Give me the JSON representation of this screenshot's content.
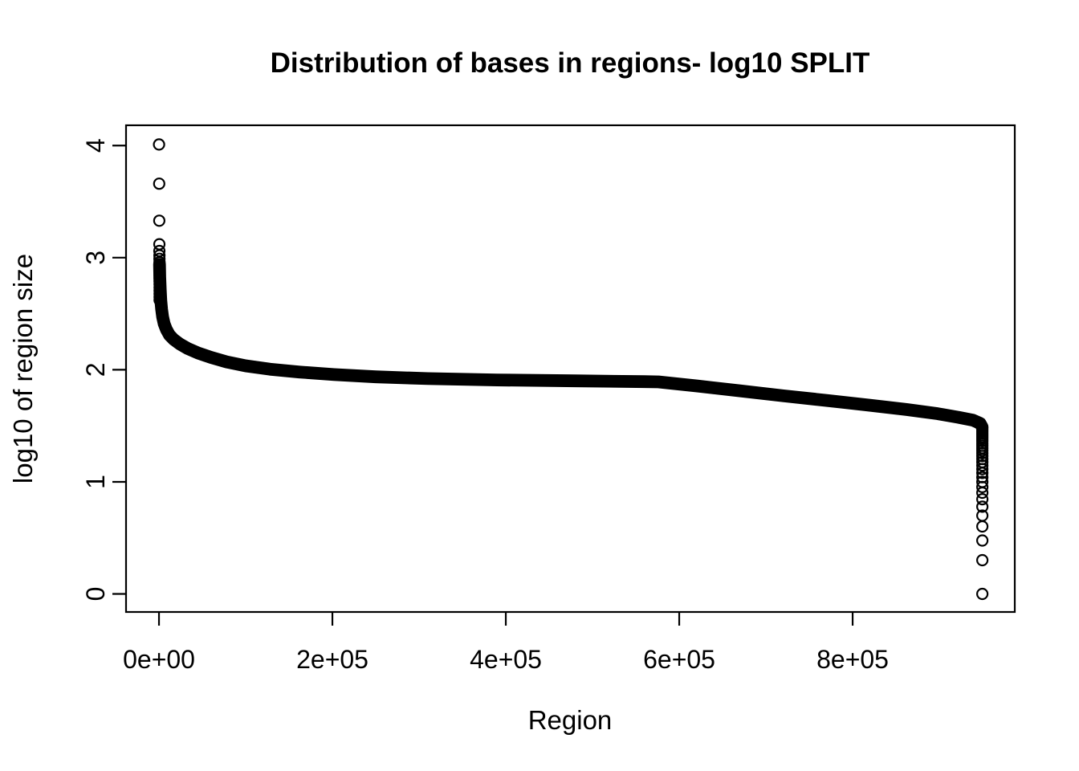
{
  "window": {
    "background_color": "#ffffff",
    "foreground_color": "#000000"
  },
  "chart_data": {
    "type": "scatter",
    "title": "Distribution of bases in regions- log10 SPLIT",
    "xlabel": "Region",
    "ylabel": "log10 of region size",
    "grid": false,
    "legend": "none",
    "xlim": [
      -38000,
      987000
    ],
    "ylim": [
      -0.161,
      4.181
    ],
    "x_ticks": {
      "values": [
        0,
        200000,
        400000,
        600000,
        800000
      ],
      "labels": [
        "0e+00",
        "2e+05",
        "4e+05",
        "6e+05",
        "8e+05"
      ]
    },
    "y_ticks": {
      "values": [
        0,
        1,
        2,
        3,
        4
      ],
      "labels": [
        "0",
        "1",
        "2",
        "3",
        "4"
      ]
    },
    "marker": {
      "shape": "open-circle",
      "radius_px": 6.5,
      "stroke_px": 2.2,
      "color": "#000000"
    },
    "n_points_approx": 950000,
    "series_note": "regions sorted by size descending; y = log10(region size in bases)",
    "left_outliers": [
      {
        "i": 100,
        "v": 4.01
      },
      {
        "i": 200,
        "v": 3.66
      },
      {
        "i": 300,
        "v": 3.33
      },
      {
        "i": 380,
        "v": 3.12
      },
      {
        "i": 440,
        "v": 3.06
      },
      {
        "i": 500,
        "v": 3.02
      },
      {
        "i": 560,
        "v": 2.99
      },
      {
        "i": 620,
        "v": 2.96
      }
    ],
    "curve_profile": [
      [
        650,
        2.94
      ],
      [
        900,
        2.83
      ],
      [
        1400,
        2.72
      ],
      [
        2100,
        2.62
      ],
      [
        3000,
        2.54
      ],
      [
        4200,
        2.47
      ],
      [
        6000,
        2.41
      ],
      [
        8500,
        2.36
      ],
      [
        12000,
        2.31
      ],
      [
        17000,
        2.27
      ],
      [
        24000,
        2.23
      ],
      [
        33000,
        2.19
      ],
      [
        45000,
        2.15
      ],
      [
        60000,
        2.11
      ],
      [
        78000,
        2.07
      ],
      [
        100000,
        2.035
      ],
      [
        128000,
        2.005
      ],
      [
        162000,
        1.98
      ],
      [
        202000,
        1.957
      ],
      [
        250000,
        1.937
      ],
      [
        310000,
        1.921
      ],
      [
        390000,
        1.909
      ],
      [
        480000,
        1.901
      ],
      [
        560000,
        1.894
      ],
      [
        576000,
        1.892
      ],
      [
        620000,
        1.856
      ],
      [
        670000,
        1.812
      ],
      [
        720000,
        1.768
      ],
      [
        770000,
        1.726
      ],
      [
        820000,
        1.683
      ],
      [
        862000,
        1.645
      ],
      [
        898000,
        1.608
      ],
      [
        922000,
        1.576
      ],
      [
        939000,
        1.549
      ],
      [
        947000,
        1.522
      ],
      [
        949300,
        1.49
      ]
    ],
    "right_tail": {
      "i": 949600,
      "values": [
        1.477,
        1.462,
        1.447,
        1.431,
        1.415,
        1.398,
        1.38,
        1.362,
        1.342,
        1.322,
        1.301,
        1.279,
        1.255,
        1.23,
        1.204,
        1.176,
        1.146,
        1.114,
        1.079,
        1.041,
        1.0,
        0.954,
        0.903,
        0.845,
        0.778,
        0.699,
        0.602,
        0.477,
        0.301,
        0.0
      ]
    }
  }
}
